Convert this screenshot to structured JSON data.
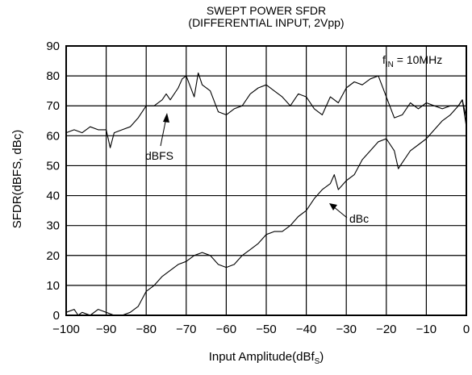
{
  "chart_data": {
    "type": "line",
    "title": "SWEPT POWER SFDR",
    "subtitle": "(DIFFERENTIAL INPUT, 2Vpp)",
    "xlabel": "Input Amplitude(dBf",
    "xlabel_sub": "S",
    "xlabel_end": ")",
    "ylabel": "SFDR(dBFS, dBc)",
    "xlim": [
      -100,
      0
    ],
    "ylim": [
      0,
      90
    ],
    "xticks": [
      -100,
      -90,
      -80,
      -70,
      -60,
      -50,
      -40,
      -30,
      -20,
      -10,
      0
    ],
    "xtick_labels": [
      "−100",
      "−90",
      "−80",
      "−70",
      "−60",
      "−50",
      "−40",
      "−30",
      "−20",
      "−10",
      "0"
    ],
    "yticks": [
      0,
      10,
      20,
      30,
      40,
      50,
      60,
      70,
      80,
      90
    ],
    "grid": true,
    "annotation_fin": {
      "main": "f",
      "sub": "IN",
      "rest": " = 10MHz"
    },
    "series": [
      {
        "name": "dBFS",
        "x": [
          -100,
          -98,
          -96,
          -94,
          -92,
          -90,
          -89,
          -88,
          -86,
          -84,
          -82,
          -80,
          -78,
          -76,
          -75,
          -74,
          -72,
          -71,
          -70,
          -68,
          -67,
          -66,
          -64,
          -62,
          -60,
          -58,
          -56,
          -54,
          -52,
          -50,
          -48,
          -46,
          -44,
          -42,
          -40,
          -38,
          -36,
          -34,
          -32,
          -30,
          -28,
          -26,
          -24,
          -22,
          -20,
          -18,
          -16,
          -14,
          -12,
          -10,
          -8,
          -6,
          -4,
          -2,
          -1,
          0
        ],
        "y": [
          61,
          62,
          61,
          63,
          62,
          62,
          56,
          61,
          62,
          63,
          66,
          70,
          70,
          72,
          74,
          72,
          76,
          79,
          80,
          73,
          81,
          77,
          75,
          68,
          67,
          69,
          70,
          74,
          76,
          77,
          75,
          73,
          70,
          74,
          73,
          69,
          67,
          73,
          71,
          76,
          78,
          77,
          79,
          80,
          73,
          66,
          67,
          71,
          69,
          71,
          70,
          69,
          70,
          70,
          72,
          63
        ]
      },
      {
        "name": "dBc",
        "x": [
          -100,
          -98,
          -97,
          -96,
          -94,
          -92,
          -90,
          -88,
          -86,
          -84,
          -82,
          -80,
          -78,
          -76,
          -74,
          -72,
          -70,
          -68,
          -66,
          -64,
          -62,
          -60,
          -58,
          -56,
          -54,
          -52,
          -50,
          -48,
          -46,
          -44,
          -42,
          -40,
          -38,
          -36,
          -34,
          -33,
          -32,
          -30,
          -28,
          -26,
          -24,
          -22,
          -20,
          -18,
          -17,
          -16,
          -14,
          -12,
          -10,
          -8,
          -6,
          -4,
          -2,
          -1,
          0
        ],
        "y": [
          1,
          2,
          0,
          1,
          0,
          2,
          1,
          0,
          0,
          1,
          3,
          8,
          10,
          13,
          15,
          17,
          18,
          20,
          21,
          20,
          17,
          16,
          17,
          20,
          22,
          24,
          27,
          28,
          28,
          30,
          33,
          35,
          39,
          42,
          44,
          47,
          42,
          45,
          47,
          52,
          55,
          58,
          59,
          55,
          49,
          51,
          55,
          57,
          59,
          62,
          65,
          67,
          70,
          72,
          66
        ]
      }
    ],
    "labels": {
      "dbfs": "dBFS",
      "dbc": "dBc"
    }
  }
}
